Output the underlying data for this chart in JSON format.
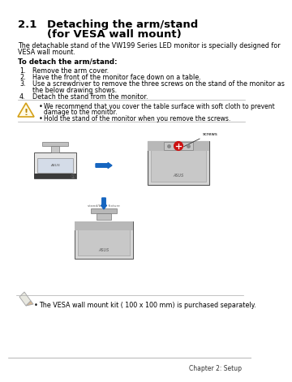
{
  "bg_color": "#ffffff",
  "title_number": "2.1",
  "title_line1": "Detaching the arm/stand",
  "title_line2": "(for VESA wall mount)",
  "intro_text1": "The detachable stand of the VW199 Series LED monitor is specially designed for",
  "intro_text2": "VESA wall mount.",
  "bold_label": "To detach the arm/stand:",
  "steps": [
    "Remove the arm cover.",
    "Have the front of the monitor face down on a table.",
    "Use a screwdriver to remove the three screws on the stand of the monitor as",
    "the below drawing shows.",
    "Detach the stand from the monitor."
  ],
  "step_numbers": [
    "1.",
    "2.",
    "3.",
    "",
    "4."
  ],
  "warning_bullet1a": "We recommend that you cover the table surface with soft cloth to prevent",
  "warning_bullet1b": "damage to the monitor.",
  "warning_bullet2": "Hold the stand of the monitor when you remove the screws.",
  "note_text": "The VESA wall mount kit ( 100 x 100 mm) is purchased separately.",
  "footer_text": "Chapter 2: Setup",
  "arrow_color": "#1565c0",
  "screws_label": "screws"
}
